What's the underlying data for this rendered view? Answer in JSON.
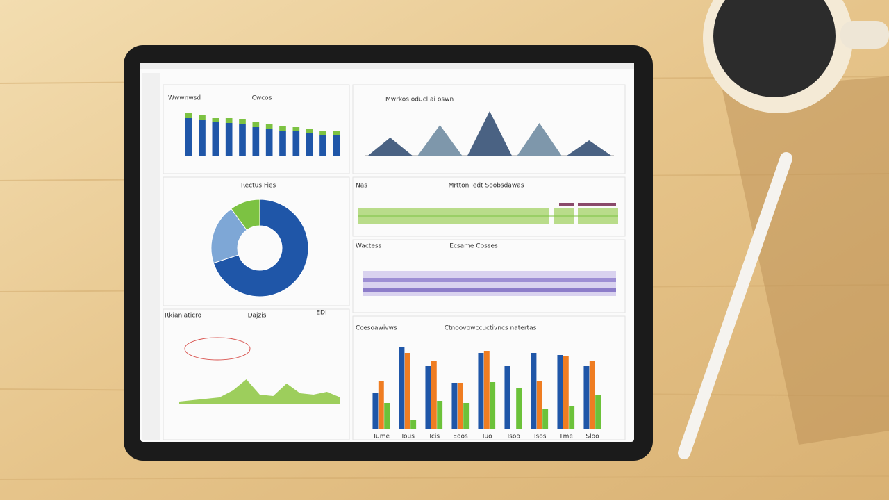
{
  "chart_data": [
    {
      "type": "stacked-bar",
      "title": "Cwcos",
      "label": "Wwwnwsd",
      "series": [
        {
          "color": "#1f56a8",
          "values": [
            55,
            52,
            49,
            48,
            46,
            42,
            40,
            37,
            36,
            33,
            31,
            30
          ]
        },
        {
          "color": "#7cc242",
          "values": [
            8,
            7,
            6,
            7,
            8,
            8,
            7,
            7,
            6,
            6,
            6,
            6
          ]
        }
      ],
      "ylim": [
        0,
        70
      ]
    },
    {
      "type": "peaks",
      "title": "Mwrkos oducl ai oswn",
      "values": [
        26,
        44,
        64,
        47,
        22
      ],
      "colors": [
        "#4a6283",
        "#7e97ab"
      ],
      "ylim": [
        0,
        74
      ]
    },
    {
      "type": "pie",
      "title": "Rectus Fies",
      "values": [
        70,
        20,
        10
      ],
      "colors": [
        "#1f56a8",
        "#7ea7d6",
        "#7cc242"
      ]
    },
    {
      "type": "grouped-bar",
      "title": "Ctnoovowccuctivncs natertas",
      "label": "Ccesoawivws",
      "categories": [
        "Tume",
        "Tous",
        "Tcis",
        "Eoos",
        "Tuo",
        "Tsoo",
        "Tsos",
        "Tme",
        "Sloo"
      ],
      "series": [
        {
          "color": "#1f56a8",
          "values": [
            52,
            118,
            91,
            67,
            110,
            91,
            110,
            107,
            91
          ]
        },
        {
          "color": "#ef7d22",
          "values": [
            70,
            110,
            98,
            67,
            113,
            0,
            69,
            106,
            98
          ]
        },
        {
          "color": "#6cc23a",
          "values": [
            38,
            13,
            41,
            38,
            68,
            59,
            30,
            33,
            50
          ]
        }
      ],
      "ylim": [
        0,
        130
      ]
    },
    {
      "type": "area",
      "title": "Dajzis",
      "label": "Rkianlaticro",
      "values": [
        4,
        6,
        8,
        10,
        20,
        36,
        14,
        12,
        30,
        16,
        14,
        18,
        10
      ],
      "color": "#8cc63f",
      "ylim": [
        0,
        52
      ]
    }
  ],
  "dashboard": {
    "table_label": "Nas",
    "table_title": "Mrtton Iedt Soobsdawas",
    "band_label": "Wactess",
    "band_title": "Ecsame Cosses",
    "corner": "EDI"
  }
}
